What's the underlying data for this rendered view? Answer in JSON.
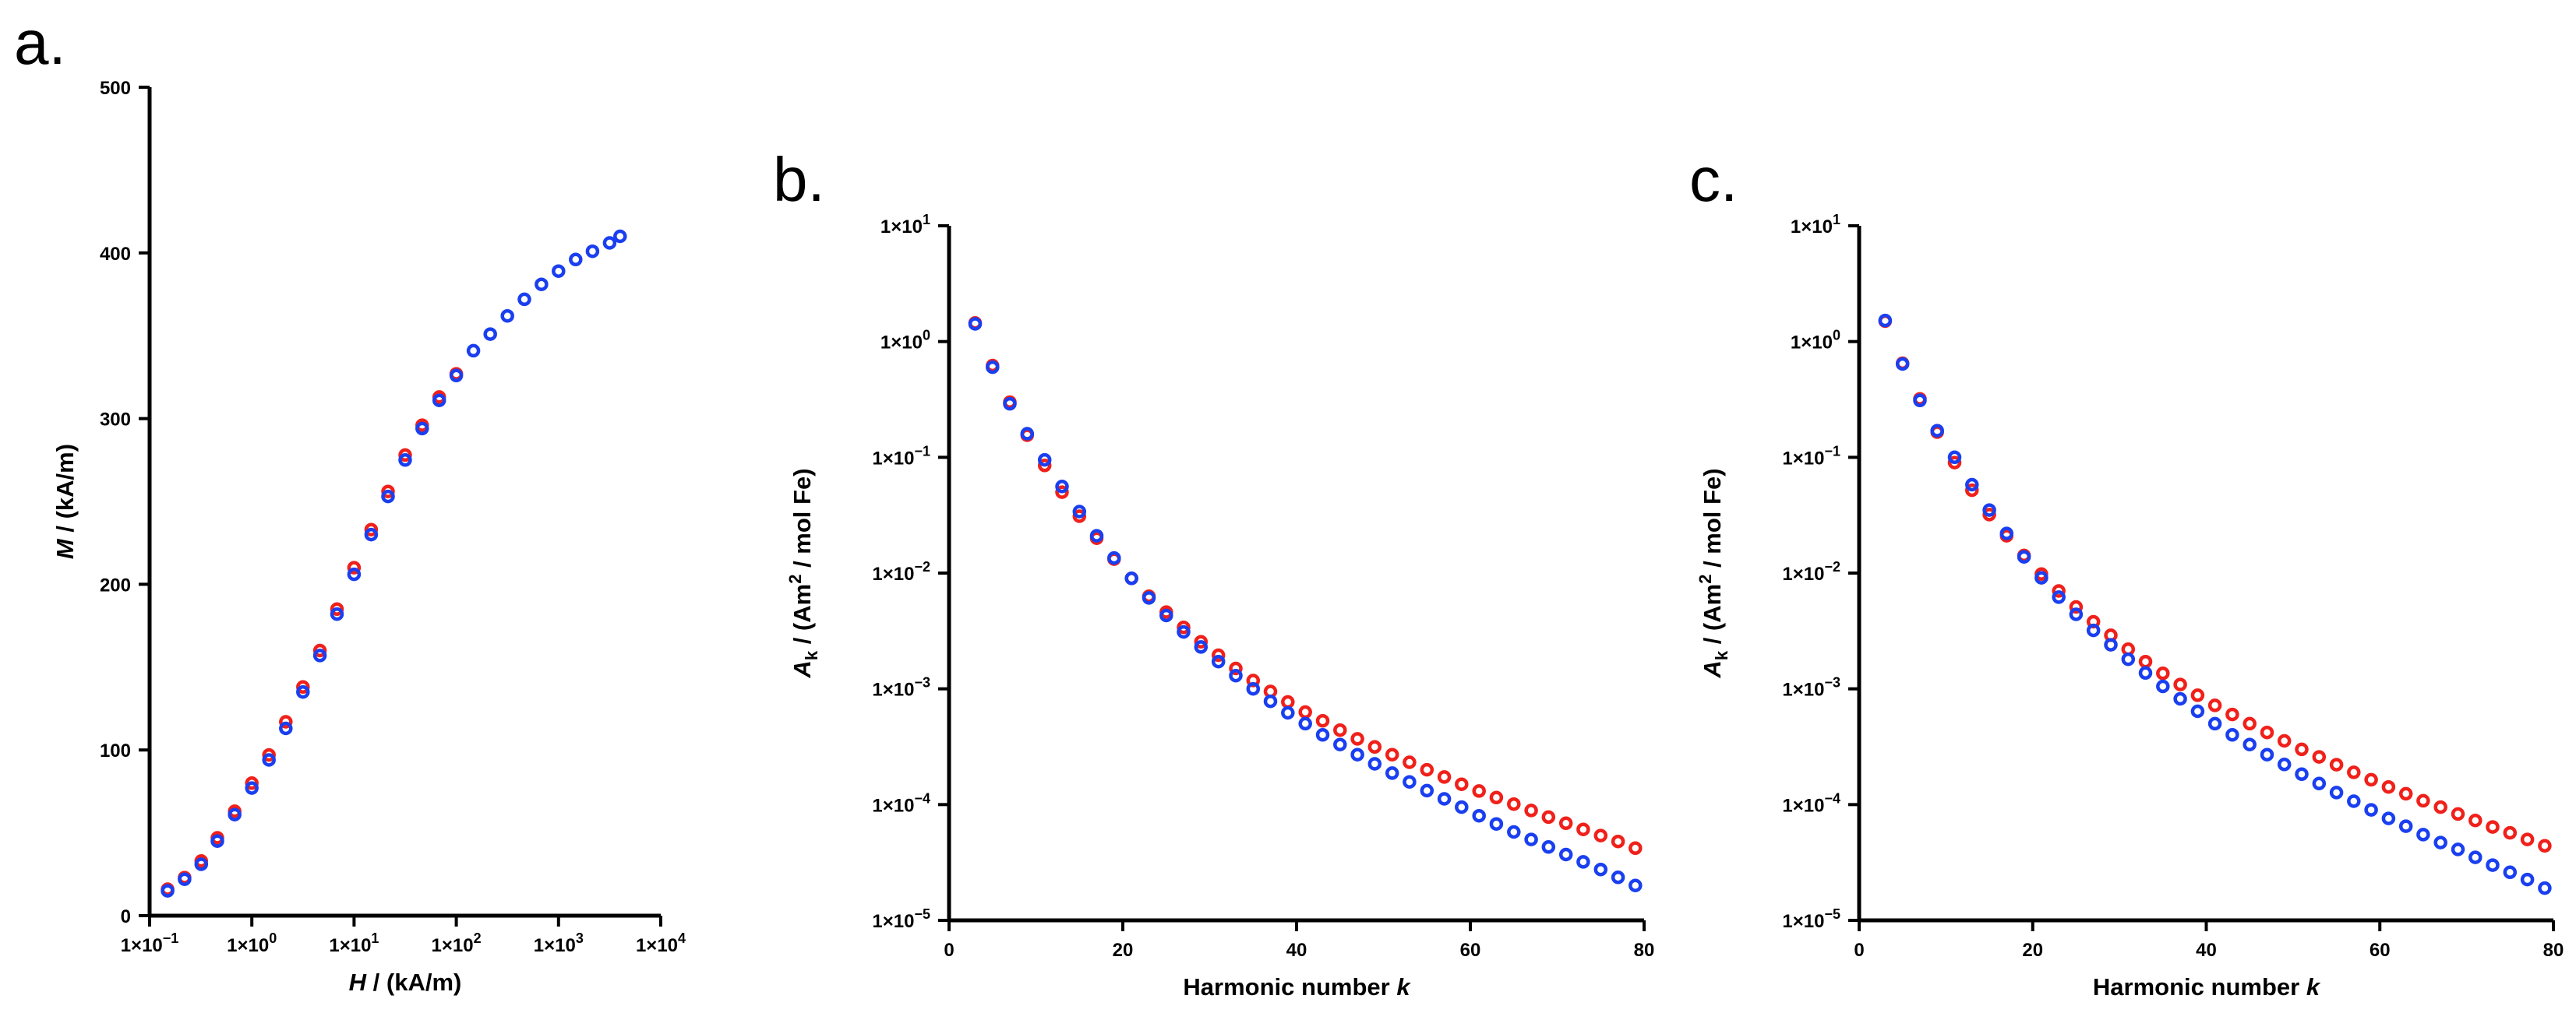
{
  "figure": {
    "panels": [
      {
        "label": "a.",
        "key": "a"
      },
      {
        "label": "b.",
        "key": "b"
      },
      {
        "label": "c.",
        "key": "c"
      }
    ]
  },
  "colors": {
    "series_red": "#f0201a",
    "series_blue": "#1a3ff0"
  },
  "chart_data": [
    {
      "id": "a",
      "type": "scatter",
      "panel_label": "a.",
      "xscale": "log",
      "yscale": "linear",
      "xlim": [
        0.1,
        10000
      ],
      "ylim": [
        0,
        500
      ],
      "x_ticks": [
        0.1,
        1,
        10,
        100,
        1000,
        10000
      ],
      "x_tick_labels": [
        {
          "base": "1×10",
          "exp": "−1"
        },
        {
          "base": "1×10",
          "exp": "0"
        },
        {
          "base": "1×10",
          "exp": "1"
        },
        {
          "base": "1×10",
          "exp": "2"
        },
        {
          "base": "1×10",
          "exp": "3"
        },
        {
          "base": "1×10",
          "exp": "4"
        }
      ],
      "y_ticks": [
        0,
        100,
        200,
        300,
        400,
        500
      ],
      "y_tick_labels": [
        "0",
        "100",
        "200",
        "300",
        "400",
        "500"
      ],
      "xlabel": {
        "var": "H",
        "rest": " / (kA/m)"
      },
      "ylabel": {
        "var": "M",
        "rest": " / (kA/m)"
      },
      "series": [
        {
          "name": "red",
          "color": "#f0201a",
          "x": [
            0.15,
            0.22,
            0.32,
            0.46,
            0.68,
            1.0,
            1.47,
            2.15,
            3.16,
            4.64,
            6.81,
            10.0,
            14.7,
            21.5,
            31.6,
            46.4,
            68.1,
            100
          ],
          "y": [
            16,
            23,
            33,
            47,
            63,
            80,
            97,
            117,
            138,
            160,
            185,
            210,
            233,
            256,
            278,
            296,
            313,
            327
          ]
        },
        {
          "name": "blue",
          "color": "#1a3ff0",
          "x": [
            0.15,
            0.22,
            0.32,
            0.46,
            0.68,
            1.0,
            1.47,
            2.15,
            3.16,
            4.64,
            6.81,
            10.0,
            14.7,
            21.5,
            31.6,
            46.4,
            68.1,
            100,
            147,
            215,
            316,
            464,
            681,
            1000,
            1470,
            2150,
            3160,
            4000
          ],
          "y": [
            15,
            22,
            31,
            45,
            61,
            77,
            94,
            113,
            135,
            157,
            182,
            206,
            230,
            253,
            275,
            294,
            311,
            326,
            341,
            351,
            362,
            372,
            381,
            389,
            396,
            401,
            406,
            410
          ]
        }
      ]
    },
    {
      "id": "b",
      "type": "scatter",
      "panel_label": "b.",
      "xscale": "linear",
      "yscale": "log",
      "xlim": [
        0,
        80
      ],
      "ylim": [
        1e-05,
        10
      ],
      "x_ticks": [
        0,
        20,
        40,
        60,
        80
      ],
      "x_tick_labels": [
        "0",
        "20",
        "40",
        "60",
        "80"
      ],
      "y_ticks": [
        1e-05,
        0.0001,
        0.001,
        0.01,
        0.1,
        1,
        10
      ],
      "y_tick_labels": [
        {
          "base": "1×10",
          "exp": "−5"
        },
        {
          "base": "1×10",
          "exp": "−4"
        },
        {
          "base": "1×10",
          "exp": "−3"
        },
        {
          "base": "1×10",
          "exp": "−2"
        },
        {
          "base": "1×10",
          "exp": "−1"
        },
        {
          "base": "1×10",
          "exp": "0"
        },
        {
          "base": "1×10",
          "exp": "1"
        }
      ],
      "xlabel": {
        "main": "Harmonic number ",
        "var": "k"
      },
      "ylabel": {
        "var": "A",
        "sub": "k",
        "rest1": " / (Am",
        "sup": "2",
        "rest2": " / mol Fe)"
      },
      "series": [
        {
          "name": "red",
          "color": "#f0201a",
          "x": [
            3,
            5,
            7,
            9,
            11,
            13,
            15,
            17,
            19,
            21,
            23,
            25,
            27,
            29,
            31,
            33,
            35,
            37,
            39,
            41,
            43,
            45,
            47,
            49,
            51,
            53,
            55,
            57,
            59,
            61,
            63,
            65,
            67,
            69,
            71,
            73,
            75,
            77,
            79
          ],
          "y": [
            1.45,
            0.62,
            0.3,
            0.155,
            0.085,
            0.05,
            0.031,
            0.02,
            0.0132,
            0.009,
            0.0063,
            0.0046,
            0.0034,
            0.00255,
            0.00195,
            0.0015,
            0.00118,
            0.00095,
            0.00077,
            0.00063,
            0.00053,
            0.00044,
            0.00037,
            0.000315,
            0.00027,
            0.000232,
            0.0002,
            0.000173,
            0.00015,
            0.000131,
            0.000115,
            0.000101,
            8.9e-05,
            7.8e-05,
            6.9e-05,
            6.1e-05,
            5.4e-05,
            4.8e-05,
            4.2e-05
          ]
        },
        {
          "name": "blue",
          "color": "#1a3ff0",
          "x": [
            3,
            5,
            7,
            9,
            11,
            13,
            15,
            17,
            19,
            21,
            23,
            25,
            27,
            29,
            31,
            33,
            35,
            37,
            39,
            41,
            43,
            45,
            47,
            49,
            51,
            53,
            55,
            57,
            59,
            61,
            63,
            65,
            67,
            69,
            71,
            73,
            75,
            77,
            79
          ],
          "y": [
            1.42,
            0.6,
            0.29,
            0.16,
            0.095,
            0.056,
            0.034,
            0.021,
            0.0135,
            0.009,
            0.0061,
            0.0043,
            0.0031,
            0.0023,
            0.00172,
            0.0013,
            0.001,
            0.00078,
            0.00062,
            0.0005,
            0.0004,
            0.00033,
            0.00027,
            0.000225,
            0.000187,
            0.000157,
            0.000132,
            0.000112,
            9.5e-05,
            8e-05,
            6.8e-05,
            5.8e-05,
            5e-05,
            4.3e-05,
            3.7e-05,
            3.2e-05,
            2.75e-05,
            2.35e-05,
            2e-05
          ]
        }
      ]
    },
    {
      "id": "c",
      "type": "scatter",
      "panel_label": "c.",
      "xscale": "linear",
      "yscale": "log",
      "xlim": [
        0,
        80
      ],
      "ylim": [
        1e-05,
        10
      ],
      "x_ticks": [
        0,
        20,
        40,
        60,
        80
      ],
      "x_tick_labels": [
        "0",
        "20",
        "40",
        "60",
        "80"
      ],
      "y_ticks": [
        1e-05,
        0.0001,
        0.001,
        0.01,
        0.1,
        1,
        10
      ],
      "y_tick_labels": [
        {
          "base": "1×10",
          "exp": "−5"
        },
        {
          "base": "1×10",
          "exp": "−4"
        },
        {
          "base": "1×10",
          "exp": "−3"
        },
        {
          "base": "1×10",
          "exp": "−2"
        },
        {
          "base": "1×10",
          "exp": "−1"
        },
        {
          "base": "1×10",
          "exp": "0"
        },
        {
          "base": "1×10",
          "exp": "1"
        }
      ],
      "xlabel": {
        "main": "Harmonic number ",
        "var": "k"
      },
      "ylabel": {
        "var": "A",
        "sub": "k",
        "rest1": " / (Am",
        "sup": "2",
        "rest2": " / mol Fe)"
      },
      "series": [
        {
          "name": "red",
          "color": "#f0201a",
          "x": [
            3,
            5,
            7,
            9,
            11,
            13,
            15,
            17,
            19,
            21,
            23,
            25,
            27,
            29,
            31,
            33,
            35,
            37,
            39,
            41,
            43,
            45,
            47,
            49,
            51,
            53,
            55,
            57,
            59,
            61,
            63,
            65,
            67,
            69,
            71,
            73,
            75,
            77,
            79
          ],
          "y": [
            1.5,
            0.65,
            0.32,
            0.165,
            0.09,
            0.052,
            0.032,
            0.021,
            0.0142,
            0.0098,
            0.007,
            0.0051,
            0.0038,
            0.0029,
            0.0022,
            0.00172,
            0.00136,
            0.00109,
            0.00088,
            0.00072,
            0.0006,
            0.0005,
            0.00042,
            0.000355,
            0.0003,
            0.000258,
            0.000221,
            0.00019,
            0.000164,
            0.000142,
            0.000124,
            0.000108,
            9.5e-05,
            8.3e-05,
            7.3e-05,
            6.4e-05,
            5.7e-05,
            5e-05,
            4.4e-05
          ]
        },
        {
          "name": "blue",
          "color": "#1a3ff0",
          "x": [
            3,
            5,
            7,
            9,
            11,
            13,
            15,
            17,
            19,
            21,
            23,
            25,
            27,
            29,
            31,
            33,
            35,
            37,
            39,
            41,
            43,
            45,
            47,
            49,
            51,
            53,
            55,
            57,
            59,
            61,
            63,
            65,
            67,
            69,
            71,
            73,
            75,
            77,
            79
          ],
          "y": [
            1.52,
            0.64,
            0.31,
            0.17,
            0.1,
            0.058,
            0.035,
            0.022,
            0.0138,
            0.0091,
            0.0062,
            0.0044,
            0.0032,
            0.0024,
            0.0018,
            0.00137,
            0.00105,
            0.00082,
            0.00064,
            0.0005,
            0.0004,
            0.00033,
            0.00027,
            0.000222,
            0.000183,
            0.000152,
            0.000127,
            0.000107,
            9e-05,
            7.6e-05,
            6.5e-05,
            5.5e-05,
            4.7e-05,
            4.1e-05,
            3.5e-05,
            3e-05,
            2.6e-05,
            2.25e-05,
            1.9e-05
          ]
        }
      ]
    }
  ]
}
